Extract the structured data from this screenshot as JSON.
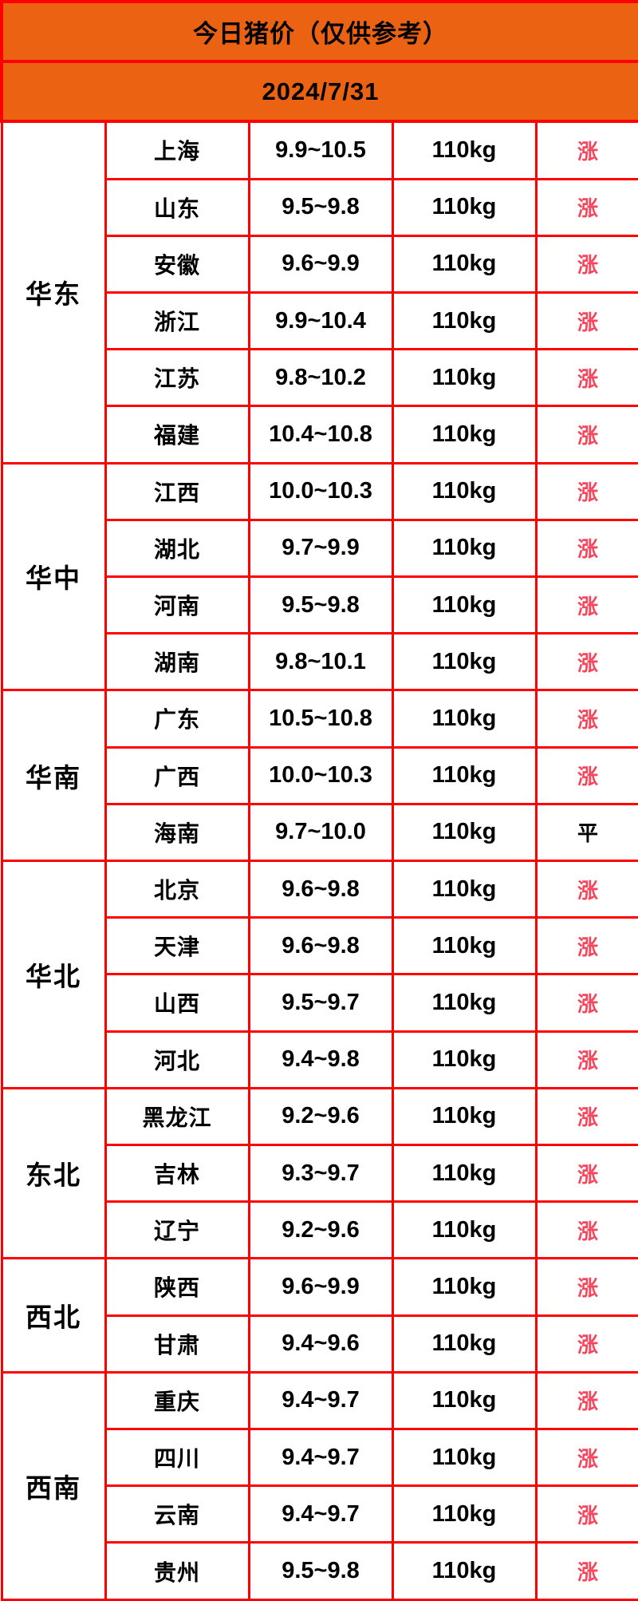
{
  "chart_data": {
    "type": "table",
    "title": "今日猪价（仅供参考）",
    "date": "2024/7/31",
    "layout_hint": "columns: region (merged rowspan), province, price range (yuan/jin), standard weight, trend",
    "groups": [
      {
        "region": "华东",
        "rows": [
          {
            "province": "上海",
            "price": "9.9~10.5",
            "weight": "110kg",
            "trend": "涨"
          },
          {
            "province": "山东",
            "price": "9.5~9.8",
            "weight": "110kg",
            "trend": "涨"
          },
          {
            "province": "安徽",
            "price": "9.6~9.9",
            "weight": "110kg",
            "trend": "涨"
          },
          {
            "province": "浙江",
            "price": "9.9~10.4",
            "weight": "110kg",
            "trend": "涨"
          },
          {
            "province": "江苏",
            "price": "9.8~10.2",
            "weight": "110kg",
            "trend": "涨"
          },
          {
            "province": "福建",
            "price": "10.4~10.8",
            "weight": "110kg",
            "trend": "涨"
          }
        ]
      },
      {
        "region": "华中",
        "rows": [
          {
            "province": "江西",
            "price": "10.0~10.3",
            "weight": "110kg",
            "trend": "涨"
          },
          {
            "province": "湖北",
            "price": "9.7~9.9",
            "weight": "110kg",
            "trend": "涨"
          },
          {
            "province": "河南",
            "price": "9.5~9.8",
            "weight": "110kg",
            "trend": "涨"
          },
          {
            "province": "湖南",
            "price": "9.8~10.1",
            "weight": "110kg",
            "trend": "涨"
          }
        ]
      },
      {
        "region": "华南",
        "rows": [
          {
            "province": "广东",
            "price": "10.5~10.8",
            "weight": "110kg",
            "trend": "涨"
          },
          {
            "province": "广西",
            "price": "10.0~10.3",
            "weight": "110kg",
            "trend": "涨"
          },
          {
            "province": "海南",
            "price": "9.7~10.0",
            "weight": "110kg",
            "trend": "平"
          }
        ]
      },
      {
        "region": "华北",
        "rows": [
          {
            "province": "北京",
            "price": "9.6~9.8",
            "weight": "110kg",
            "trend": "涨"
          },
          {
            "province": "天津",
            "price": "9.6~9.8",
            "weight": "110kg",
            "trend": "涨"
          },
          {
            "province": "山西",
            "price": "9.5~9.7",
            "weight": "110kg",
            "trend": "涨"
          },
          {
            "province": "河北",
            "price": "9.4~9.8",
            "weight": "110kg",
            "trend": "涨"
          }
        ]
      },
      {
        "region": "东北",
        "rows": [
          {
            "province": "黑龙江",
            "price": "9.2~9.6",
            "weight": "110kg",
            "trend": "涨"
          },
          {
            "province": "吉林",
            "price": "9.3~9.7",
            "weight": "110kg",
            "trend": "涨"
          },
          {
            "province": "辽宁",
            "price": "9.2~9.6",
            "weight": "110kg",
            "trend": "涨"
          }
        ]
      },
      {
        "region": "西北",
        "rows": [
          {
            "province": "陕西",
            "price": "9.6~9.9",
            "weight": "110kg",
            "trend": "涨"
          },
          {
            "province": "甘肃",
            "price": "9.4~9.6",
            "weight": "110kg",
            "trend": "涨"
          }
        ]
      },
      {
        "region": "西南",
        "rows": [
          {
            "province": "重庆",
            "price": "9.4~9.7",
            "weight": "110kg",
            "trend": "涨"
          },
          {
            "province": "四川",
            "price": "9.4~9.7",
            "weight": "110kg",
            "trend": "涨"
          },
          {
            "province": "云南",
            "price": "9.4~9.7",
            "weight": "110kg",
            "trend": "涨"
          },
          {
            "province": "贵州",
            "price": "9.5~9.8",
            "weight": "110kg",
            "trend": "涨"
          }
        ]
      }
    ]
  },
  "trend_styles": {
    "涨": "rise",
    "平": "flat"
  },
  "colors": {
    "header_bg": "#eb6312",
    "border": "#ff0000",
    "cell_bg": "#ffffff",
    "text": "#000000",
    "trend_rise": "#f9455c",
    "trend_flat": "#000000"
  }
}
